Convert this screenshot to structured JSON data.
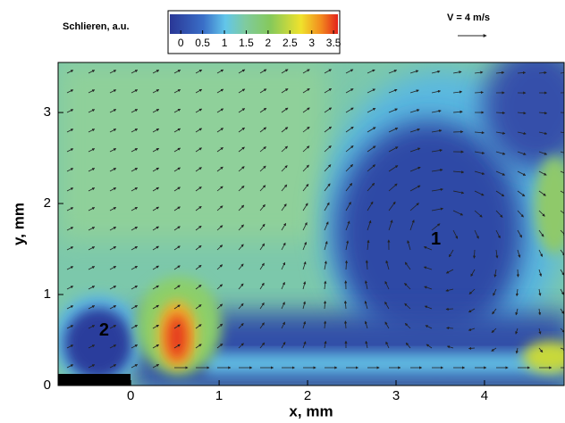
{
  "chart_data": {
    "type": "contour",
    "colorbar_label": "Schlieren, a.u.",
    "clim": [
      -0.25,
      3.6
    ],
    "cticks": [
      0,
      0.5,
      1,
      1.5,
      2,
      2.5,
      3,
      3.5
    ],
    "vector_scale_label": "V = 4 m/s",
    "xlabel": "x, mm",
    "ylabel": "y, mm",
    "xlim": [
      -0.82,
      4.9
    ],
    "ylim": [
      0,
      3.55
    ],
    "xticks": [
      0,
      1,
      2,
      3,
      4
    ],
    "yticks": [
      0,
      1,
      2,
      3
    ],
    "annotations": [
      {
        "text": "1",
        "x": 3.45,
        "y": 1.6
      },
      {
        "text": "2",
        "x": -0.3,
        "y": 0.6
      }
    ]
  }
}
